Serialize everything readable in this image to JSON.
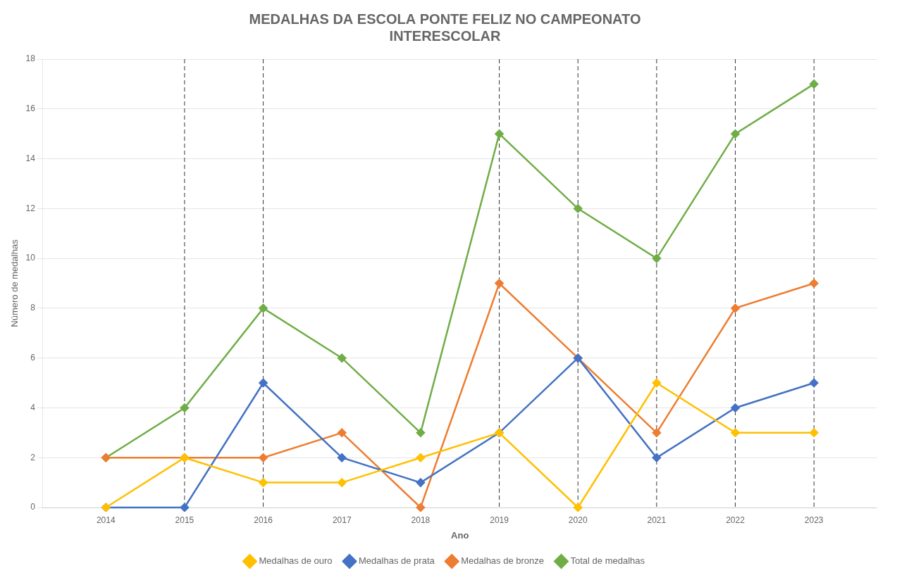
{
  "chart_data": {
    "type": "line",
    "title": "MEDALHAS DA ESCOLA PONTE FELIZ NO CAMPEONATO\nINTERESCOLAR",
    "xlabel": "Ano",
    "ylabel": "Número de medalhas",
    "x": [
      2014,
      2015,
      2016,
      2017,
      2018,
      2019,
      2020,
      2021,
      2022,
      2023
    ],
    "series": [
      {
        "name": "Medalhas de ouro",
        "color": "#FFC000",
        "marker": "diamond",
        "values": [
          0,
          2,
          1,
          1,
          2,
          3,
          0,
          5,
          3,
          3
        ]
      },
      {
        "name": "Medalhas de prata",
        "color": "#4472C4",
        "marker": "diamond",
        "values": [
          0,
          0,
          5,
          2,
          1,
          3,
          6,
          2,
          4,
          5
        ]
      },
      {
        "name": "Medalhas de bronze",
        "color": "#ED7D31",
        "marker": "diamond",
        "values": [
          2,
          2,
          2,
          3,
          0,
          9,
          6,
          3,
          8,
          9
        ]
      },
      {
        "name": "Total de medalhas",
        "color": "#70AD47",
        "marker": "diamond",
        "values": [
          2,
          4,
          8,
          6,
          3,
          15,
          12,
          10,
          15,
          17
        ]
      }
    ],
    "xlim": [
      2013.2,
      2023.8
    ],
    "xticks": [
      2014,
      2015,
      2016,
      2017,
      2018,
      2019,
      2020,
      2021,
      2022,
      2023
    ],
    "ylim": [
      0,
      18
    ],
    "yticks": [
      0,
      2,
      4,
      6,
      8,
      10,
      12,
      14,
      16,
      18
    ],
    "vlines": [
      2015,
      2016,
      2019,
      2020,
      2021,
      2022,
      2023
    ],
    "grid": "y",
    "legend": "bottom"
  }
}
